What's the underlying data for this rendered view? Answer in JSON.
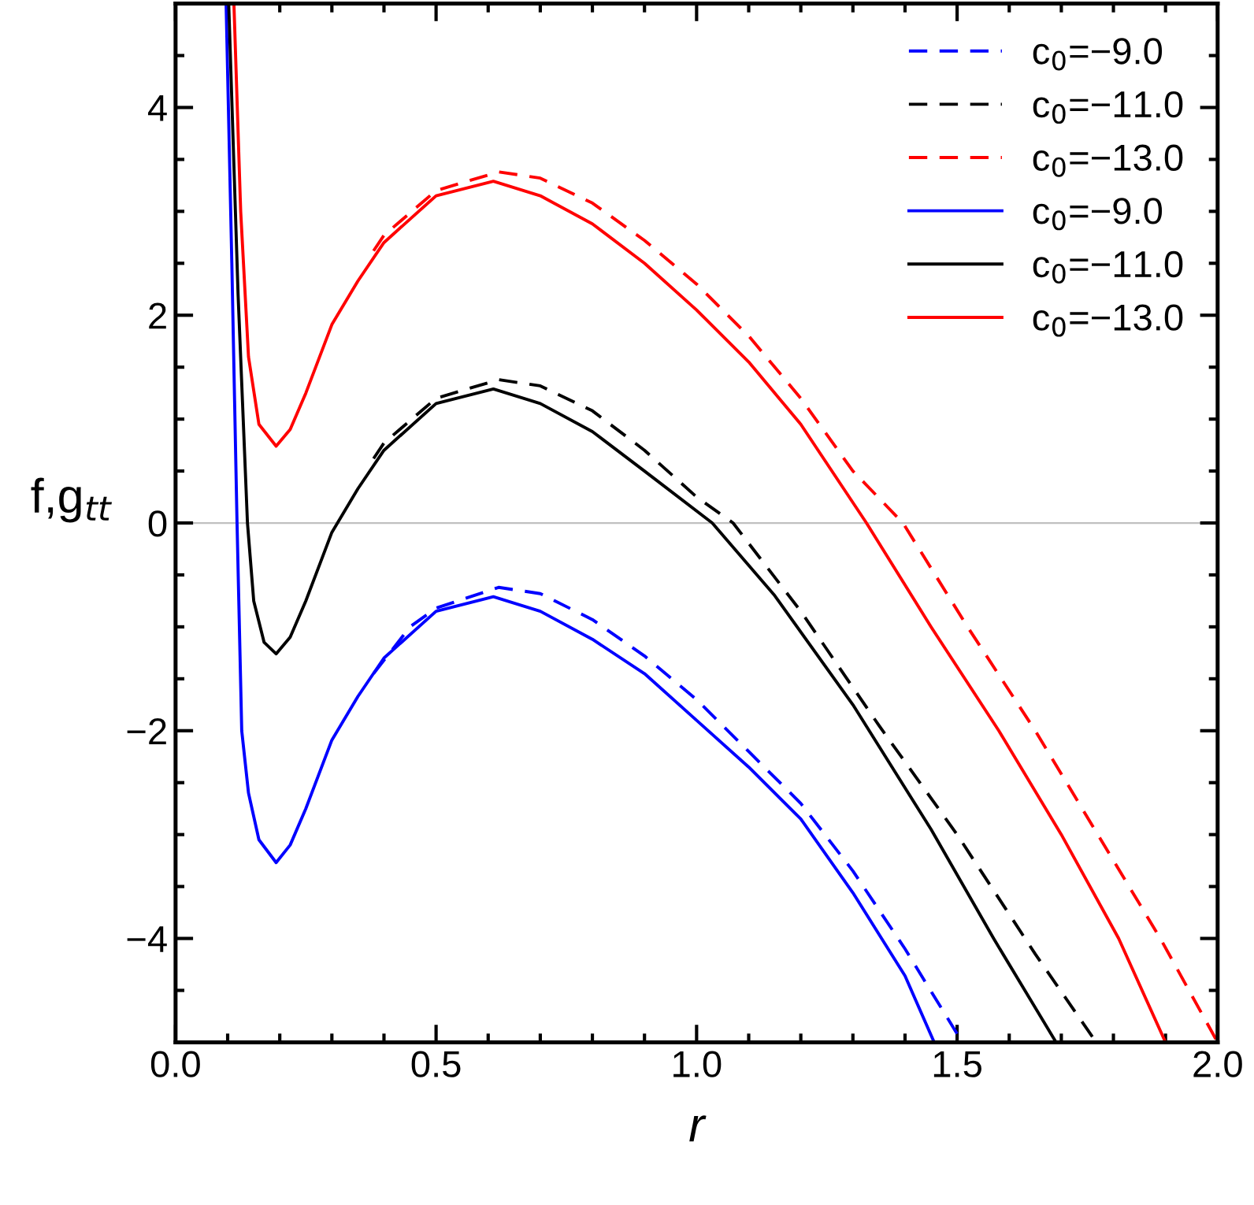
{
  "chart_data": {
    "type": "line",
    "xlabel": "r",
    "ylabel": "f,g$_{tt}$",
    "xlim": [
      0,
      2
    ],
    "ylim": [
      -5,
      5
    ],
    "xticks": [
      {
        "value": 0,
        "label": "0.0"
      },
      {
        "value": 0.5,
        "label": "0.5"
      },
      {
        "value": 1,
        "label": "1.0"
      },
      {
        "value": 1.5,
        "label": "1.5"
      },
      {
        "value": 2,
        "label": "2.0"
      }
    ],
    "yticks": [
      -4,
      -2,
      0,
      2,
      4
    ],
    "grid": false,
    "legend": "top right",
    "marker": "none",
    "ref_lines": [
      {
        "axis": "y",
        "value": 0,
        "color": "#c0c0c0"
      }
    ],
    "series": [
      {
        "name": "c$_{0}$=−9.0",
        "color": "#0000ff",
        "line_style": "dashed",
        "x": [
          0.38,
          0.45,
          0.5,
          0.62,
          0.7,
          0.8,
          0.9,
          1.0,
          1.1,
          1.2,
          1.3,
          1.4,
          1.51
        ],
        "values": [
          -1.45,
          -1.0,
          -0.82,
          -0.62,
          -0.68,
          -0.93,
          -1.28,
          -1.7,
          -2.2,
          -2.7,
          -3.35,
          -4.1,
          -5
        ]
      },
      {
        "name": "c$_{0}$=−11.0",
        "color": "#000000",
        "line_style": "dashed",
        "x": [
          0.38,
          0.4,
          0.5,
          0.62,
          0.7,
          0.8,
          0.9,
          1.0,
          1.07,
          1.2,
          1.35,
          1.5,
          1.65,
          1.767
        ],
        "values": [
          0.62,
          0.77,
          1.2,
          1.38,
          1.32,
          1.08,
          0.7,
          0.25,
          0,
          -0.85,
          -1.95,
          -3.0,
          -4.15,
          -5
        ]
      },
      {
        "name": "c$_{0}$=−13.0",
        "color": "#ff0000",
        "line_style": "dashed",
        "x": [
          0.38,
          0.4,
          0.5,
          0.62,
          0.7,
          0.8,
          0.9,
          1.0,
          1.1,
          1.2,
          1.3,
          1.396,
          1.52,
          1.65,
          1.77,
          1.89,
          2.0
        ],
        "values": [
          2.62,
          2.77,
          3.2,
          3.38,
          3.32,
          3.08,
          2.72,
          2.3,
          1.8,
          1.2,
          0.5,
          0,
          -1.0,
          -2.0,
          -3.0,
          -4.0,
          -5
        ]
      },
      {
        "name": "c$_{0}$=−9.0",
        "color": "#0000ff",
        "line_style": "solid",
        "x": [
          0.097,
          0.108,
          0.118,
          0.127,
          0.14,
          0.16,
          0.193,
          0.22,
          0.25,
          0.3,
          0.35,
          0.4,
          0.5,
          0.61,
          0.7,
          0.8,
          0.9,
          1.0,
          1.1,
          1.2,
          1.3,
          1.4,
          1.456
        ],
        "values": [
          5,
          2.5,
          0,
          -2,
          -2.6,
          -3.05,
          -3.27,
          -3.1,
          -2.75,
          -2.09,
          -1.67,
          -1.3,
          -0.85,
          -0.71,
          -0.85,
          -1.12,
          -1.45,
          -1.9,
          -2.35,
          -2.85,
          -3.56,
          -4.36,
          -5
        ]
      },
      {
        "name": "c$_{0}$=−11.0",
        "color": "#000000",
        "line_style": "solid",
        "x": [
          0.102,
          0.12,
          0.138,
          0.15,
          0.17,
          0.193,
          0.22,
          0.25,
          0.3,
          0.35,
          0.4,
          0.5,
          0.61,
          0.7,
          0.8,
          0.9,
          1.03,
          1.15,
          1.3,
          1.45,
          1.57,
          1.69
        ],
        "values": [
          5,
          2.2,
          0,
          -0.75,
          -1.15,
          -1.26,
          -1.1,
          -0.75,
          -0.09,
          0.33,
          0.7,
          1.15,
          1.29,
          1.15,
          0.88,
          0.5,
          0,
          -0.7,
          -1.75,
          -2.95,
          -4.0,
          -5
        ]
      },
      {
        "name": "c$_{0}$=−13.0",
        "color": "#ff0000",
        "line_style": "solid",
        "x": [
          0.112,
          0.125,
          0.14,
          0.16,
          0.193,
          0.22,
          0.25,
          0.3,
          0.35,
          0.4,
          0.5,
          0.61,
          0.7,
          0.8,
          0.9,
          1.0,
          1.1,
          1.2,
          1.326,
          1.45,
          1.58,
          1.7,
          1.81,
          1.9
        ],
        "values": [
          5,
          3,
          1.6,
          0.95,
          0.74,
          0.9,
          1.25,
          1.91,
          2.33,
          2.7,
          3.15,
          3.29,
          3.15,
          2.88,
          2.5,
          2.05,
          1.55,
          0.95,
          0,
          -1.0,
          -2.0,
          -3.0,
          -4.0,
          -5
        ]
      }
    ]
  }
}
